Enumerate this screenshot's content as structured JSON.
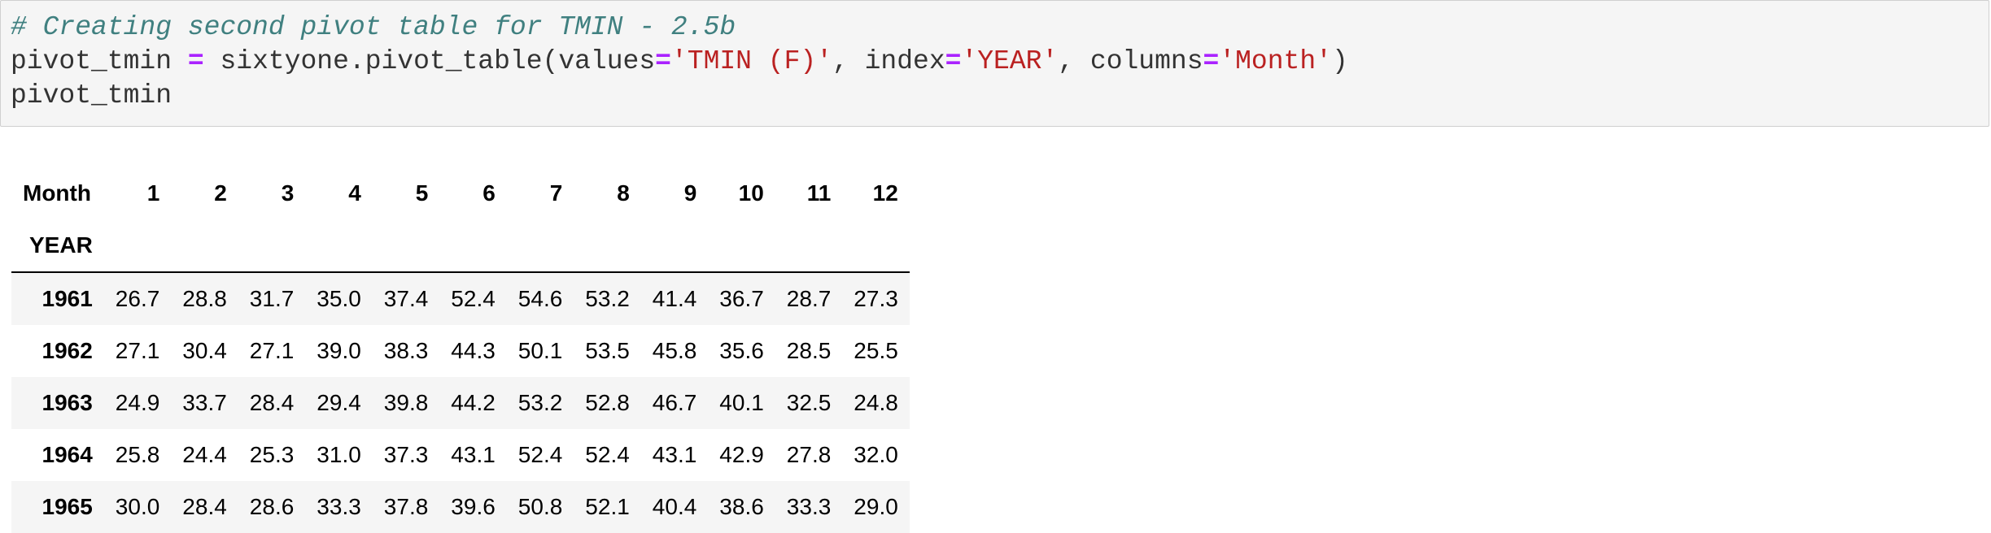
{
  "code_cell": {
    "line1_comment": "# Creating second pivot table for TMIN - 2.5b",
    "line2": {
      "var": "pivot_tmin ",
      "op1": "=",
      "call": " sixtyone.pivot_table(values",
      "op2": "=",
      "str1": "'TMIN (F)'",
      "sep1": ", index",
      "op3": "=",
      "str2": "'YEAR'",
      "sep2": ", columns",
      "op4": "=",
      "str3": "'Month'",
      "close": ")"
    },
    "line3": "pivot_tmin"
  },
  "table": {
    "columns_name": "Month",
    "index_name": "YEAR",
    "columns": [
      "1",
      "2",
      "3",
      "4",
      "5",
      "6",
      "7",
      "8",
      "9",
      "10",
      "11",
      "12"
    ],
    "rows": [
      {
        "index": "1961",
        "values": [
          "26.7",
          "28.8",
          "31.7",
          "35.0",
          "37.4",
          "52.4",
          "54.6",
          "53.2",
          "41.4",
          "36.7",
          "28.7",
          "27.3"
        ]
      },
      {
        "index": "1962",
        "values": [
          "27.1",
          "30.4",
          "27.1",
          "39.0",
          "38.3",
          "44.3",
          "50.1",
          "53.5",
          "45.8",
          "35.6",
          "28.5",
          "25.5"
        ]
      },
      {
        "index": "1963",
        "values": [
          "24.9",
          "33.7",
          "28.4",
          "29.4",
          "39.8",
          "44.2",
          "53.2",
          "52.8",
          "46.7",
          "40.1",
          "32.5",
          "24.8"
        ]
      },
      {
        "index": "1964",
        "values": [
          "25.8",
          "24.4",
          "25.3",
          "31.0",
          "37.3",
          "43.1",
          "52.4",
          "52.4",
          "43.1",
          "42.9",
          "27.8",
          "32.0"
        ]
      },
      {
        "index": "1965",
        "values": [
          "30.0",
          "28.4",
          "28.6",
          "33.3",
          "37.8",
          "39.6",
          "50.8",
          "52.1",
          "40.4",
          "38.6",
          "33.3",
          "29.0"
        ]
      }
    ]
  }
}
